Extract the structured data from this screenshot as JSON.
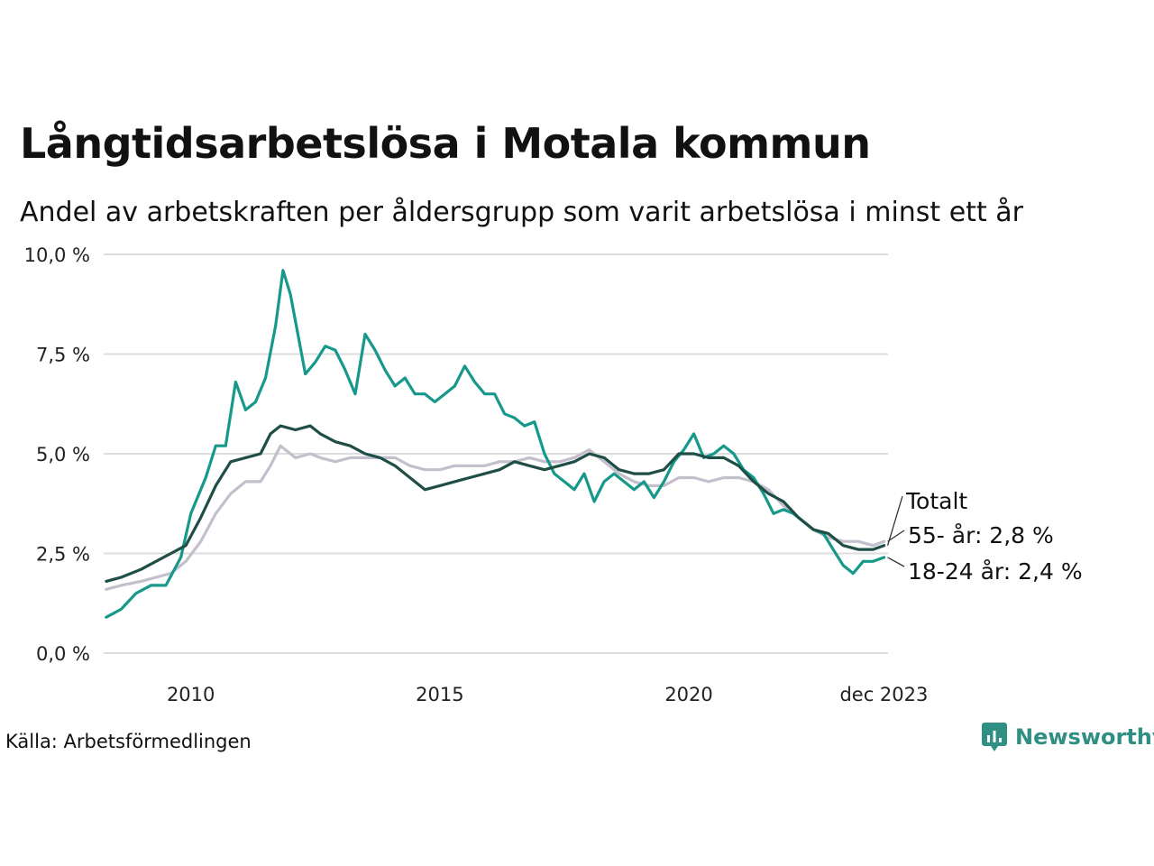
{
  "title": "Långtidsarbetslösa i Motala kommun",
  "subtitle": "Andel av arbetskraften per åldersgrupp som varit arbetslösa i minst ett år",
  "source": "Källa: Arbetsförmedlingen",
  "brand": "Newsworthy",
  "colors": {
    "total": "#1f4e46",
    "age55": "#c3bfcc",
    "age1824": "#16998a",
    "grid": "#dddddd",
    "brand": "#2f8f83"
  },
  "chart_data": {
    "type": "line",
    "title": "Långtidsarbetslösa i Motala kommun",
    "xlabel": "",
    "ylabel": "",
    "xlim": [
      2008.25,
      2024.0
    ],
    "ylim": [
      0,
      10
    ],
    "grid": "horizontal",
    "y_ticks": [
      {
        "value": 0,
        "label": "0,0 %"
      },
      {
        "value": 2.5,
        "label": "2,5 %"
      },
      {
        "value": 5,
        "label": "5,0 %"
      },
      {
        "value": 7.5,
        "label": "7,5 %"
      },
      {
        "value": 10,
        "label": "10,0 %"
      }
    ],
    "x_ticks": [
      {
        "value": 2010,
        "label": "2010"
      },
      {
        "value": 2015,
        "label": "2015"
      },
      {
        "value": 2020,
        "label": "2020"
      },
      {
        "value": 2023.917,
        "label": "dec 2023"
      }
    ],
    "series": [
      {
        "name": "Totalt",
        "label": "Totalt",
        "color_key": "total",
        "last_value": 2.7,
        "points": [
          [
            2008.3,
            1.8
          ],
          [
            2008.6,
            1.9
          ],
          [
            2009.0,
            2.1
          ],
          [
            2009.3,
            2.3
          ],
          [
            2009.6,
            2.5
          ],
          [
            2009.9,
            2.7
          ],
          [
            2010.2,
            3.4
          ],
          [
            2010.5,
            4.2
          ],
          [
            2010.8,
            4.8
          ],
          [
            2011.1,
            4.9
          ],
          [
            2011.4,
            5.0
          ],
          [
            2011.6,
            5.5
          ],
          [
            2011.8,
            5.7
          ],
          [
            2012.1,
            5.6
          ],
          [
            2012.4,
            5.7
          ],
          [
            2012.6,
            5.5
          ],
          [
            2012.9,
            5.3
          ],
          [
            2013.2,
            5.2
          ],
          [
            2013.5,
            5.0
          ],
          [
            2013.8,
            4.9
          ],
          [
            2014.1,
            4.7
          ],
          [
            2014.4,
            4.4
          ],
          [
            2014.7,
            4.1
          ],
          [
            2015.0,
            4.2
          ],
          [
            2015.3,
            4.3
          ],
          [
            2015.6,
            4.4
          ],
          [
            2015.9,
            4.5
          ],
          [
            2016.2,
            4.6
          ],
          [
            2016.5,
            4.8
          ],
          [
            2016.8,
            4.7
          ],
          [
            2017.1,
            4.6
          ],
          [
            2017.4,
            4.7
          ],
          [
            2017.7,
            4.8
          ],
          [
            2018.0,
            5.0
          ],
          [
            2018.3,
            4.9
          ],
          [
            2018.6,
            4.6
          ],
          [
            2018.9,
            4.5
          ],
          [
            2019.2,
            4.5
          ],
          [
            2019.5,
            4.6
          ],
          [
            2019.8,
            5.0
          ],
          [
            2020.1,
            5.0
          ],
          [
            2020.4,
            4.9
          ],
          [
            2020.7,
            4.9
          ],
          [
            2021.0,
            4.7
          ],
          [
            2021.3,
            4.3
          ],
          [
            2021.6,
            4.0
          ],
          [
            2021.9,
            3.8
          ],
          [
            2022.2,
            3.4
          ],
          [
            2022.5,
            3.1
          ],
          [
            2022.8,
            3.0
          ],
          [
            2023.1,
            2.7
          ],
          [
            2023.4,
            2.6
          ],
          [
            2023.7,
            2.6
          ],
          [
            2023.92,
            2.7
          ]
        ]
      },
      {
        "name": "55- år",
        "label": "55- år: 2,8 %",
        "color_key": "age55",
        "last_value": 2.8,
        "points": [
          [
            2008.3,
            1.6
          ],
          [
            2008.6,
            1.7
          ],
          [
            2009.0,
            1.8
          ],
          [
            2009.3,
            1.9
          ],
          [
            2009.6,
            2.0
          ],
          [
            2009.9,
            2.3
          ],
          [
            2010.2,
            2.8
          ],
          [
            2010.5,
            3.5
          ],
          [
            2010.8,
            4.0
          ],
          [
            2011.1,
            4.3
          ],
          [
            2011.4,
            4.3
          ],
          [
            2011.6,
            4.7
          ],
          [
            2011.8,
            5.2
          ],
          [
            2012.1,
            4.9
          ],
          [
            2012.4,
            5.0
          ],
          [
            2012.6,
            4.9
          ],
          [
            2012.9,
            4.8
          ],
          [
            2013.2,
            4.9
          ],
          [
            2013.5,
            4.9
          ],
          [
            2013.8,
            4.9
          ],
          [
            2014.1,
            4.9
          ],
          [
            2014.4,
            4.7
          ],
          [
            2014.7,
            4.6
          ],
          [
            2015.0,
            4.6
          ],
          [
            2015.3,
            4.7
          ],
          [
            2015.6,
            4.7
          ],
          [
            2015.9,
            4.7
          ],
          [
            2016.2,
            4.8
          ],
          [
            2016.5,
            4.8
          ],
          [
            2016.8,
            4.9
          ],
          [
            2017.1,
            4.8
          ],
          [
            2017.4,
            4.8
          ],
          [
            2017.7,
            4.9
          ],
          [
            2018.0,
            5.1
          ],
          [
            2018.3,
            4.8
          ],
          [
            2018.6,
            4.5
          ],
          [
            2018.9,
            4.3
          ],
          [
            2019.2,
            4.2
          ],
          [
            2019.5,
            4.2
          ],
          [
            2019.8,
            4.4
          ],
          [
            2020.1,
            4.4
          ],
          [
            2020.4,
            4.3
          ],
          [
            2020.7,
            4.4
          ],
          [
            2021.0,
            4.4
          ],
          [
            2021.3,
            4.3
          ],
          [
            2021.6,
            4.1
          ],
          [
            2021.9,
            3.7
          ],
          [
            2022.2,
            3.4
          ],
          [
            2022.5,
            3.1
          ],
          [
            2022.8,
            2.9
          ],
          [
            2023.1,
            2.8
          ],
          [
            2023.4,
            2.8
          ],
          [
            2023.7,
            2.7
          ],
          [
            2023.92,
            2.8
          ]
        ]
      },
      {
        "name": "18-24 år",
        "label": "18-24 år: 2,4 %",
        "color_key": "age1824",
        "last_value": 2.4,
        "points": [
          [
            2008.3,
            0.9
          ],
          [
            2008.6,
            1.1
          ],
          [
            2008.9,
            1.5
          ],
          [
            2009.2,
            1.7
          ],
          [
            2009.5,
            1.7
          ],
          [
            2009.8,
            2.4
          ],
          [
            2010.0,
            3.5
          ],
          [
            2010.3,
            4.4
          ],
          [
            2010.5,
            5.2
          ],
          [
            2010.7,
            5.2
          ],
          [
            2010.9,
            6.8
          ],
          [
            2011.1,
            6.1
          ],
          [
            2011.3,
            6.3
          ],
          [
            2011.5,
            6.9
          ],
          [
            2011.7,
            8.2
          ],
          [
            2011.85,
            9.6
          ],
          [
            2012.0,
            9.0
          ],
          [
            2012.15,
            8.0
          ],
          [
            2012.3,
            7.0
          ],
          [
            2012.5,
            7.3
          ],
          [
            2012.7,
            7.7
          ],
          [
            2012.9,
            7.6
          ],
          [
            2013.1,
            7.1
          ],
          [
            2013.3,
            6.5
          ],
          [
            2013.5,
            8.0
          ],
          [
            2013.7,
            7.6
          ],
          [
            2013.9,
            7.1
          ],
          [
            2014.1,
            6.7
          ],
          [
            2014.3,
            6.9
          ],
          [
            2014.5,
            6.5
          ],
          [
            2014.7,
            6.5
          ],
          [
            2014.9,
            6.3
          ],
          [
            2015.1,
            6.5
          ],
          [
            2015.3,
            6.7
          ],
          [
            2015.5,
            7.2
          ],
          [
            2015.7,
            6.8
          ],
          [
            2015.9,
            6.5
          ],
          [
            2016.1,
            6.5
          ],
          [
            2016.3,
            6.0
          ],
          [
            2016.5,
            5.9
          ],
          [
            2016.7,
            5.7
          ],
          [
            2016.9,
            5.8
          ],
          [
            2017.1,
            5.0
          ],
          [
            2017.3,
            4.5
          ],
          [
            2017.5,
            4.3
          ],
          [
            2017.7,
            4.1
          ],
          [
            2017.9,
            4.5
          ],
          [
            2018.1,
            3.8
          ],
          [
            2018.3,
            4.3
          ],
          [
            2018.5,
            4.5
          ],
          [
            2018.7,
            4.3
          ],
          [
            2018.9,
            4.1
          ],
          [
            2019.1,
            4.3
          ],
          [
            2019.3,
            3.9
          ],
          [
            2019.5,
            4.3
          ],
          [
            2019.7,
            4.8
          ],
          [
            2019.9,
            5.1
          ],
          [
            2020.1,
            5.5
          ],
          [
            2020.3,
            4.9
          ],
          [
            2020.5,
            5.0
          ],
          [
            2020.7,
            5.2
          ],
          [
            2020.9,
            5.0
          ],
          [
            2021.1,
            4.6
          ],
          [
            2021.3,
            4.4
          ],
          [
            2021.5,
            4.0
          ],
          [
            2021.7,
            3.5
          ],
          [
            2021.9,
            3.6
          ],
          [
            2022.1,
            3.5
          ],
          [
            2022.3,
            3.3
          ],
          [
            2022.5,
            3.1
          ],
          [
            2022.7,
            3.0
          ],
          [
            2022.9,
            2.6
          ],
          [
            2023.1,
            2.2
          ],
          [
            2023.3,
            2.0
          ],
          [
            2023.5,
            2.3
          ],
          [
            2023.7,
            2.3
          ],
          [
            2023.92,
            2.4
          ]
        ]
      }
    ]
  }
}
